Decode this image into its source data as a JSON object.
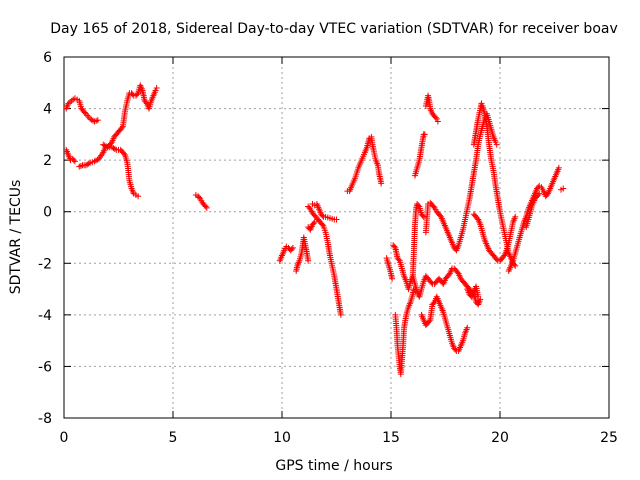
{
  "chart_data": {
    "type": "scatter",
    "title": "Day 165 of 2018, Sidereal Day-to-day VTEC variation (SDTVAR) for receiver boav",
    "xlabel": "GPS time / hours",
    "ylabel": "SDTVAR / TECUs",
    "xlim": [
      0,
      25
    ],
    "ylim": [
      -8,
      6
    ],
    "xticks": [
      0,
      5,
      10,
      15,
      20,
      25
    ],
    "yticks": [
      -8,
      -6,
      -4,
      -2,
      0,
      2,
      4,
      6
    ],
    "grid": true,
    "marker": "+",
    "color": "#ff0000",
    "segments": [
      [
        [
          0.1,
          4.0
        ],
        [
          0.2,
          4.2
        ],
        [
          0.35,
          4.3
        ],
        [
          0.5,
          4.4
        ],
        [
          0.6,
          4.35
        ],
        [
          0.7,
          4.3
        ],
        [
          0.8,
          4.0
        ],
        [
          0.9,
          3.9
        ],
        [
          1.0,
          3.8
        ],
        [
          1.2,
          3.6
        ],
        [
          1.4,
          3.5
        ],
        [
          1.55,
          3.55
        ]
      ],
      [
        [
          0.1,
          2.4
        ],
        [
          0.2,
          2.2
        ],
        [
          0.3,
          2.0
        ],
        [
          0.4,
          2.05
        ],
        [
          0.5,
          1.95
        ]
      ],
      [
        [
          0.7,
          1.75
        ],
        [
          0.85,
          1.8
        ],
        [
          1.0,
          1.8
        ],
        [
          1.2,
          1.9
        ],
        [
          1.4,
          1.95
        ],
        [
          1.6,
          2.05
        ],
        [
          1.8,
          2.3
        ],
        [
          1.9,
          2.5
        ],
        [
          2.0,
          2.5
        ],
        [
          2.1,
          2.6
        ],
        [
          2.2,
          2.7
        ],
        [
          2.3,
          2.9
        ],
        [
          2.4,
          3.0
        ],
        [
          2.5,
          3.1
        ],
        [
          2.6,
          3.2
        ],
        [
          2.7,
          3.3
        ],
        [
          2.75,
          3.6
        ],
        [
          2.8,
          3.9
        ],
        [
          2.9,
          4.3
        ],
        [
          3.0,
          4.6
        ],
        [
          3.1,
          4.6
        ],
        [
          3.2,
          4.5
        ],
        [
          3.3,
          4.5
        ],
        [
          3.4,
          4.6
        ],
        [
          3.5,
          4.9
        ],
        [
          3.6,
          4.7
        ],
        [
          3.65,
          4.5
        ],
        [
          3.7,
          4.3
        ],
        [
          3.8,
          4.2
        ],
        [
          3.9,
          4.0
        ],
        [
          4.0,
          4.3
        ],
        [
          4.1,
          4.5
        ],
        [
          4.2,
          4.7
        ],
        [
          4.25,
          4.8
        ]
      ],
      [
        [
          1.8,
          2.6
        ],
        [
          2.0,
          2.5
        ],
        [
          2.2,
          2.5
        ],
        [
          2.4,
          2.4
        ],
        [
          2.6,
          2.4
        ],
        [
          2.7,
          2.3
        ],
        [
          2.8,
          2.2
        ],
        [
          2.9,
          1.9
        ],
        [
          2.95,
          1.6
        ],
        [
          3.0,
          1.2
        ],
        [
          3.1,
          0.9
        ],
        [
          3.2,
          0.7
        ],
        [
          3.3,
          0.65
        ],
        [
          3.4,
          0.6
        ]
      ],
      [
        [
          6.05,
          0.65
        ],
        [
          6.15,
          0.6
        ],
        [
          6.25,
          0.5
        ],
        [
          6.35,
          0.35
        ],
        [
          6.45,
          0.25
        ],
        [
          6.55,
          0.15
        ]
      ],
      [
        [
          9.9,
          -1.9
        ],
        [
          10.0,
          -1.7
        ],
        [
          10.1,
          -1.5
        ],
        [
          10.2,
          -1.35
        ],
        [
          10.3,
          -1.4
        ],
        [
          10.4,
          -1.5
        ],
        [
          10.5,
          -1.4
        ]
      ],
      [
        [
          10.65,
          -2.3
        ],
        [
          10.7,
          -2.1
        ],
        [
          10.8,
          -1.9
        ],
        [
          10.9,
          -1.6
        ],
        [
          11.0,
          -1.0
        ],
        [
          11.1,
          -1.4
        ],
        [
          11.2,
          -1.9
        ]
      ],
      [
        [
          11.2,
          0.2
        ],
        [
          11.3,
          0.1
        ],
        [
          11.4,
          -0.05
        ],
        [
          11.5,
          -0.15
        ],
        [
          11.6,
          -0.25
        ],
        [
          11.7,
          -0.35
        ],
        [
          11.8,
          -0.45
        ],
        [
          11.9,
          -0.55
        ],
        [
          12.0,
          -0.8
        ],
        [
          12.1,
          -1.2
        ],
        [
          12.2,
          -1.7
        ],
        [
          12.3,
          -2.1
        ],
        [
          12.4,
          -2.5
        ],
        [
          12.5,
          -3.0
        ],
        [
          12.6,
          -3.5
        ],
        [
          12.7,
          -4.0
        ]
      ],
      [
        [
          11.4,
          0.3
        ],
        [
          11.5,
          0.25
        ],
        [
          11.6,
          0.3
        ],
        [
          11.7,
          0.1
        ],
        [
          11.8,
          -0.1
        ],
        [
          11.9,
          -0.2
        ],
        [
          12.0,
          -0.2
        ],
        [
          12.2,
          -0.25
        ],
        [
          12.4,
          -0.3
        ],
        [
          12.5,
          -0.3
        ]
      ],
      [
        [
          11.2,
          -0.6
        ],
        [
          11.3,
          -0.7
        ],
        [
          11.4,
          -0.5
        ],
        [
          11.5,
          -0.4
        ]
      ],
      [
        [
          13.0,
          0.8
        ],
        [
          13.1,
          0.8
        ],
        [
          13.2,
          1.0
        ],
        [
          13.35,
          1.3
        ],
        [
          13.5,
          1.7
        ],
        [
          13.65,
          2.0
        ],
        [
          13.8,
          2.3
        ],
        [
          13.9,
          2.5
        ],
        [
          14.0,
          2.85
        ],
        [
          14.1,
          2.9
        ],
        [
          14.15,
          2.6
        ],
        [
          14.2,
          2.4
        ],
        [
          14.3,
          2.0
        ],
        [
          14.4,
          1.8
        ],
        [
          14.45,
          1.5
        ],
        [
          14.5,
          1.3
        ],
        [
          14.55,
          1.1
        ]
      ],
      [
        [
          14.8,
          -1.8
        ],
        [
          14.9,
          -2.1
        ],
        [
          15.0,
          -2.4
        ],
        [
          15.05,
          -2.6
        ]
      ],
      [
        [
          15.1,
          -1.3
        ],
        [
          15.2,
          -1.4
        ],
        [
          15.25,
          -1.6
        ],
        [
          15.3,
          -1.8
        ],
        [
          15.4,
          -1.9
        ],
        [
          15.5,
          -2.2
        ],
        [
          15.6,
          -2.5
        ],
        [
          15.7,
          -2.7
        ],
        [
          15.8,
          -3.0
        ],
        [
          15.9,
          -2.7
        ],
        [
          16.0,
          -2.5
        ],
        [
          16.1,
          -2.8
        ],
        [
          16.2,
          -3.1
        ],
        [
          16.3,
          -3.3
        ],
        [
          16.4,
          -3.0
        ],
        [
          16.5,
          -2.7
        ],
        [
          16.6,
          -2.5
        ],
        [
          16.7,
          -2.6
        ],
        [
          16.8,
          -2.7
        ],
        [
          16.9,
          -2.8
        ],
        [
          17.0,
          -2.8
        ],
        [
          17.1,
          -2.7
        ],
        [
          17.2,
          -2.6
        ],
        [
          17.3,
          -2.7
        ],
        [
          17.4,
          -2.8
        ],
        [
          17.5,
          -2.6
        ],
        [
          17.6,
          -2.5
        ],
        [
          17.7,
          -2.4
        ],
        [
          17.8,
          -2.2
        ],
        [
          17.9,
          -2.2
        ],
        [
          18.0,
          -2.3
        ],
        [
          18.1,
          -2.4
        ],
        [
          18.2,
          -2.6
        ],
        [
          18.3,
          -2.7
        ],
        [
          18.4,
          -2.8
        ],
        [
          18.5,
          -2.9
        ],
        [
          18.6,
          -3.0
        ],
        [
          18.7,
          -3.1
        ],
        [
          18.8,
          -3.2
        ],
        [
          18.9,
          -3.5
        ],
        [
          19.0,
          -3.6
        ],
        [
          19.1,
          -3.4
        ]
      ],
      [
        [
          15.2,
          -4.0
        ],
        [
          15.25,
          -4.5
        ],
        [
          15.3,
          -5.2
        ],
        [
          15.35,
          -5.6
        ],
        [
          15.4,
          -6.0
        ],
        [
          15.45,
          -6.3
        ],
        [
          15.5,
          -5.8
        ],
        [
          15.55,
          -5.2
        ],
        [
          15.6,
          -4.5
        ],
        [
          15.7,
          -4.0
        ],
        [
          15.8,
          -3.7
        ],
        [
          15.9,
          -3.5
        ],
        [
          16.0,
          -3.2
        ],
        [
          16.05,
          -3.0
        ]
      ],
      [
        [
          16.0,
          -2.5
        ],
        [
          16.05,
          -1.5
        ],
        [
          16.1,
          -0.5
        ],
        [
          16.15,
          0.1
        ],
        [
          16.2,
          0.3
        ],
        [
          16.3,
          0.2
        ],
        [
          16.4,
          -0.1
        ],
        [
          16.5,
          -0.2
        ]
      ],
      [
        [
          16.1,
          1.4
        ],
        [
          16.2,
          1.7
        ],
        [
          16.3,
          2.0
        ],
        [
          16.4,
          2.5
        ],
        [
          16.5,
          3.0
        ],
        [
          16.55,
          3.0
        ]
      ],
      [
        [
          16.6,
          4.1
        ],
        [
          16.7,
          4.5
        ],
        [
          16.75,
          4.3
        ],
        [
          16.8,
          4.0
        ],
        [
          16.9,
          3.8
        ],
        [
          17.0,
          3.7
        ],
        [
          17.1,
          3.6
        ],
        [
          17.15,
          3.5
        ]
      ],
      [
        [
          16.4,
          -4.0
        ],
        [
          16.5,
          -4.2
        ],
        [
          16.6,
          -4.4
        ],
        [
          16.7,
          -4.3
        ],
        [
          16.8,
          -4.2
        ],
        [
          16.9,
          -3.6
        ],
        [
          17.0,
          -3.5
        ],
        [
          17.1,
          -3.3
        ],
        [
          17.2,
          -3.5
        ],
        [
          17.3,
          -3.7
        ],
        [
          17.4,
          -3.9
        ],
        [
          17.5,
          -4.2
        ],
        [
          17.6,
          -4.5
        ],
        [
          17.7,
          -4.8
        ],
        [
          17.8,
          -5.1
        ],
        [
          17.9,
          -5.3
        ],
        [
          18.0,
          -5.4
        ],
        [
          18.1,
          -5.4
        ],
        [
          18.2,
          -5.2
        ],
        [
          18.3,
          -5.0
        ],
        [
          18.4,
          -4.7
        ],
        [
          18.5,
          -4.5
        ]
      ],
      [
        [
          16.6,
          -0.8
        ],
        [
          16.7,
          0.3
        ],
        [
          16.8,
          0.35
        ],
        [
          16.9,
          0.25
        ],
        [
          17.0,
          0.15
        ],
        [
          17.1,
          0.0
        ],
        [
          17.2,
          -0.1
        ],
        [
          17.3,
          -0.2
        ],
        [
          17.4,
          -0.4
        ],
        [
          17.5,
          -0.6
        ],
        [
          17.6,
          -0.8
        ],
        [
          17.7,
          -1.0
        ],
        [
          17.8,
          -1.2
        ],
        [
          17.9,
          -1.4
        ],
        [
          18.0,
          -1.5
        ],
        [
          18.1,
          -1.3
        ],
        [
          18.2,
          -1.0
        ],
        [
          18.3,
          -0.7
        ],
        [
          18.4,
          -0.3
        ],
        [
          18.5,
          0.1
        ],
        [
          18.6,
          0.5
        ],
        [
          18.7,
          1.0
        ],
        [
          18.8,
          1.5
        ],
        [
          18.9,
          2.0
        ],
        [
          19.0,
          2.6
        ],
        [
          19.1,
          3.0
        ],
        [
          19.2,
          3.3
        ],
        [
          19.3,
          3.6
        ],
        [
          19.4,
          3.8
        ],
        [
          19.5,
          3.5
        ],
        [
          19.6,
          3.2
        ],
        [
          19.7,
          2.9
        ],
        [
          19.8,
          2.7
        ],
        [
          19.85,
          2.6
        ]
      ],
      [
        [
          18.8,
          2.6
        ],
        [
          18.9,
          3.1
        ],
        [
          19.0,
          3.6
        ],
        [
          19.1,
          4.0
        ],
        [
          19.15,
          4.2
        ],
        [
          19.2,
          4.1
        ],
        [
          19.3,
          3.8
        ],
        [
          19.4,
          3.3
        ],
        [
          19.5,
          2.6
        ],
        [
          19.6,
          2.0
        ],
        [
          19.7,
          1.6
        ],
        [
          19.8,
          1.0
        ],
        [
          19.9,
          0.5
        ],
        [
          20.0,
          0.0
        ],
        [
          20.1,
          -0.4
        ],
        [
          20.2,
          -0.8
        ],
        [
          20.3,
          -1.2
        ],
        [
          20.4,
          -1.6
        ],
        [
          20.5,
          -1.8
        ],
        [
          20.6,
          -2.0
        ],
        [
          20.7,
          -2.1
        ]
      ],
      [
        [
          18.8,
          -0.1
        ],
        [
          18.9,
          -0.2
        ],
        [
          19.0,
          -0.3
        ],
        [
          19.1,
          -0.5
        ],
        [
          19.2,
          -0.8
        ],
        [
          19.3,
          -1.1
        ],
        [
          19.4,
          -1.3
        ],
        [
          19.5,
          -1.5
        ],
        [
          19.6,
          -1.6
        ],
        [
          19.7,
          -1.7
        ],
        [
          19.8,
          -1.8
        ],
        [
          19.9,
          -1.9
        ],
        [
          20.0,
          -1.9
        ],
        [
          20.1,
          -1.8
        ],
        [
          20.2,
          -1.7
        ],
        [
          20.3,
          -1.5
        ],
        [
          20.4,
          -1.2
        ],
        [
          20.5,
          -0.8
        ],
        [
          20.6,
          -0.4
        ],
        [
          20.7,
          -0.2
        ]
      ],
      [
        [
          18.5,
          -3.0
        ],
        [
          18.6,
          -3.2
        ],
        [
          18.7,
          -3.3
        ],
        [
          18.8,
          -3.1
        ],
        [
          18.9,
          -2.9
        ],
        [
          19.0,
          -3.3
        ]
      ],
      [
        [
          20.4,
          -2.3
        ],
        [
          20.5,
          -2.1
        ],
        [
          20.6,
          -1.9
        ],
        [
          20.7,
          -1.6
        ],
        [
          20.8,
          -1.3
        ],
        [
          20.9,
          -1.0
        ],
        [
          21.0,
          -0.7
        ],
        [
          21.1,
          -0.4
        ],
        [
          21.2,
          -0.2
        ],
        [
          21.3,
          0.1
        ],
        [
          21.4,
          0.3
        ],
        [
          21.5,
          0.5
        ],
        [
          21.6,
          0.7
        ],
        [
          21.7,
          0.9
        ],
        [
          21.8,
          1.0
        ],
        [
          21.9,
          0.95
        ],
        [
          22.0,
          0.8
        ],
        [
          22.1,
          0.6
        ],
        [
          22.2,
          0.7
        ],
        [
          22.3,
          0.9
        ],
        [
          22.4,
          1.1
        ],
        [
          22.5,
          1.3
        ],
        [
          22.6,
          1.5
        ],
        [
          22.7,
          1.7
        ]
      ],
      [
        [
          21.2,
          -0.6
        ],
        [
          21.3,
          -0.3
        ],
        [
          21.4,
          0.0
        ],
        [
          21.5,
          0.3
        ],
        [
          21.6,
          0.5
        ],
        [
          21.7,
          0.6
        ],
        [
          21.8,
          0.7
        ]
      ],
      [
        [
          22.8,
          0.85
        ],
        [
          22.9,
          0.9
        ]
      ]
    ]
  }
}
